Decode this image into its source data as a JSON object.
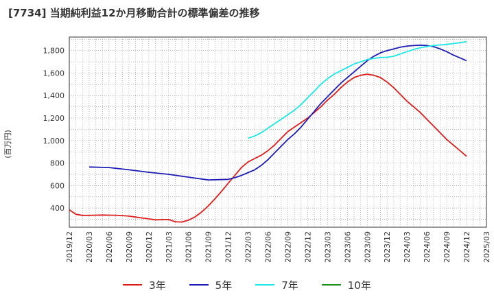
{
  "title": "[7734]  当期純利益12か月移動合計の標準偏差の推移",
  "chart_data": {
    "type": "line",
    "title": "[7734]  当期純利益12か月移動合計の標準偏差の推移",
    "ylabel": "(百万円)",
    "xlabel": "",
    "ylim": [
      230,
      1920
    ],
    "yticks": [
      400,
      600,
      800,
      1000,
      1200,
      1400,
      1600,
      1800
    ],
    "ytick_labels": [
      "400",
      "600",
      "800",
      "1,000",
      "1,200",
      "1,400",
      "1,600",
      "1,800"
    ],
    "xlim": [
      "2019-12",
      "2025-03"
    ],
    "xtick_labels": [
      "2019/12",
      "2020/03",
      "2020/06",
      "2020/09",
      "2020/12",
      "2021/03",
      "2021/06",
      "2021/09",
      "2021/12",
      "2022/03",
      "2022/06",
      "2022/09",
      "2022/12",
      "2023/03",
      "2023/06",
      "2023/09",
      "2023/12",
      "2024/03",
      "2024/06",
      "2024/09",
      "2024/12",
      "2025/03"
    ],
    "grid": true,
    "legend_position": "bottom",
    "series": [
      {
        "name": "3年",
        "color": "#dd1c1c",
        "x": [
          "2019-12",
          "2020-01",
          "2020-02",
          "2020-03",
          "2020-04",
          "2020-05",
          "2020-06",
          "2020-07",
          "2020-08",
          "2020-09",
          "2020-10",
          "2020-11",
          "2020-12",
          "2021-01",
          "2021-02",
          "2021-03",
          "2021-04",
          "2021-05",
          "2021-06",
          "2021-07",
          "2021-08",
          "2021-09",
          "2021-10",
          "2021-11",
          "2021-12",
          "2022-01",
          "2022-02",
          "2022-03",
          "2022-04",
          "2022-05",
          "2022-06",
          "2022-07",
          "2022-08",
          "2022-09",
          "2022-10",
          "2022-11",
          "2022-12",
          "2023-01",
          "2023-02",
          "2023-03",
          "2023-04",
          "2023-05",
          "2023-06",
          "2023-07",
          "2023-08",
          "2023-09",
          "2023-10",
          "2023-11",
          "2023-12",
          "2024-01",
          "2024-02",
          "2024-03",
          "2024-04",
          "2024-05",
          "2024-06",
          "2024-07",
          "2024-08",
          "2024-09",
          "2024-10",
          "2024-11",
          "2024-12"
        ],
        "y": [
          385,
          345,
          335,
          335,
          337,
          338,
          337,
          336,
          333,
          328,
          320,
          312,
          304,
          295,
          297,
          298,
          278,
          276,
          292,
          322,
          365,
          420,
          482,
          550,
          620,
          690,
          760,
          810,
          840,
          870,
          910,
          960,
          1020,
          1080,
          1120,
          1160,
          1200,
          1250,
          1300,
          1360,
          1410,
          1470,
          1520,
          1560,
          1580,
          1590,
          1580,
          1560,
          1520,
          1470,
          1410,
          1350,
          1300,
          1250,
          1190,
          1130,
          1070,
          1010,
          960,
          910,
          860
        ]
      },
      {
        "name": "5年",
        "color": "#1c1cb4",
        "x": [
          "2020-03",
          "2020-06",
          "2020-09",
          "2020-12",
          "2021-03",
          "2021-06",
          "2021-09",
          "2021-12",
          "2022-01",
          "2022-02",
          "2022-03",
          "2022-04",
          "2022-05",
          "2022-06",
          "2022-07",
          "2022-08",
          "2022-09",
          "2022-10",
          "2022-11",
          "2022-12",
          "2023-01",
          "2023-02",
          "2023-03",
          "2023-04",
          "2023-05",
          "2023-06",
          "2023-07",
          "2023-08",
          "2023-09",
          "2023-10",
          "2023-11",
          "2023-12",
          "2024-01",
          "2024-02",
          "2024-03",
          "2024-04",
          "2024-05",
          "2024-06",
          "2024-07",
          "2024-08",
          "2024-09",
          "2024-10",
          "2024-11",
          "2024-12"
        ],
        "y": [
          765,
          760,
          740,
          718,
          700,
          675,
          650,
          655,
          670,
          690,
          715,
          740,
          780,
          830,
          890,
          950,
          1010,
          1060,
          1120,
          1190,
          1260,
          1330,
          1390,
          1450,
          1510,
          1560,
          1610,
          1660,
          1710,
          1750,
          1780,
          1800,
          1815,
          1830,
          1840,
          1845,
          1848,
          1845,
          1835,
          1815,
          1790,
          1760,
          1735,
          1710
        ]
      },
      {
        "name": "7年",
        "color": "#1ce6e6",
        "x": [
          "2022-03",
          "2022-04",
          "2022-05",
          "2022-06",
          "2022-07",
          "2022-08",
          "2022-09",
          "2022-10",
          "2022-11",
          "2022-12",
          "2023-01",
          "2023-02",
          "2023-03",
          "2023-04",
          "2023-05",
          "2023-06",
          "2023-07",
          "2023-08",
          "2023-09",
          "2023-10",
          "2023-11",
          "2023-12",
          "2024-01",
          "2024-02",
          "2024-03",
          "2024-04",
          "2024-05",
          "2024-06",
          "2024-07",
          "2024-08",
          "2024-09",
          "2024-10",
          "2024-11",
          "2024-12"
        ],
        "y": [
          1020,
          1040,
          1070,
          1110,
          1150,
          1190,
          1230,
          1270,
          1320,
          1380,
          1440,
          1500,
          1550,
          1590,
          1620,
          1650,
          1680,
          1700,
          1720,
          1730,
          1738,
          1740,
          1750,
          1770,
          1790,
          1810,
          1825,
          1835,
          1845,
          1850,
          1855,
          1862,
          1870,
          1880
        ]
      },
      {
        "name": "10年",
        "color": "#1c8c1c",
        "x": [],
        "y": []
      }
    ]
  }
}
